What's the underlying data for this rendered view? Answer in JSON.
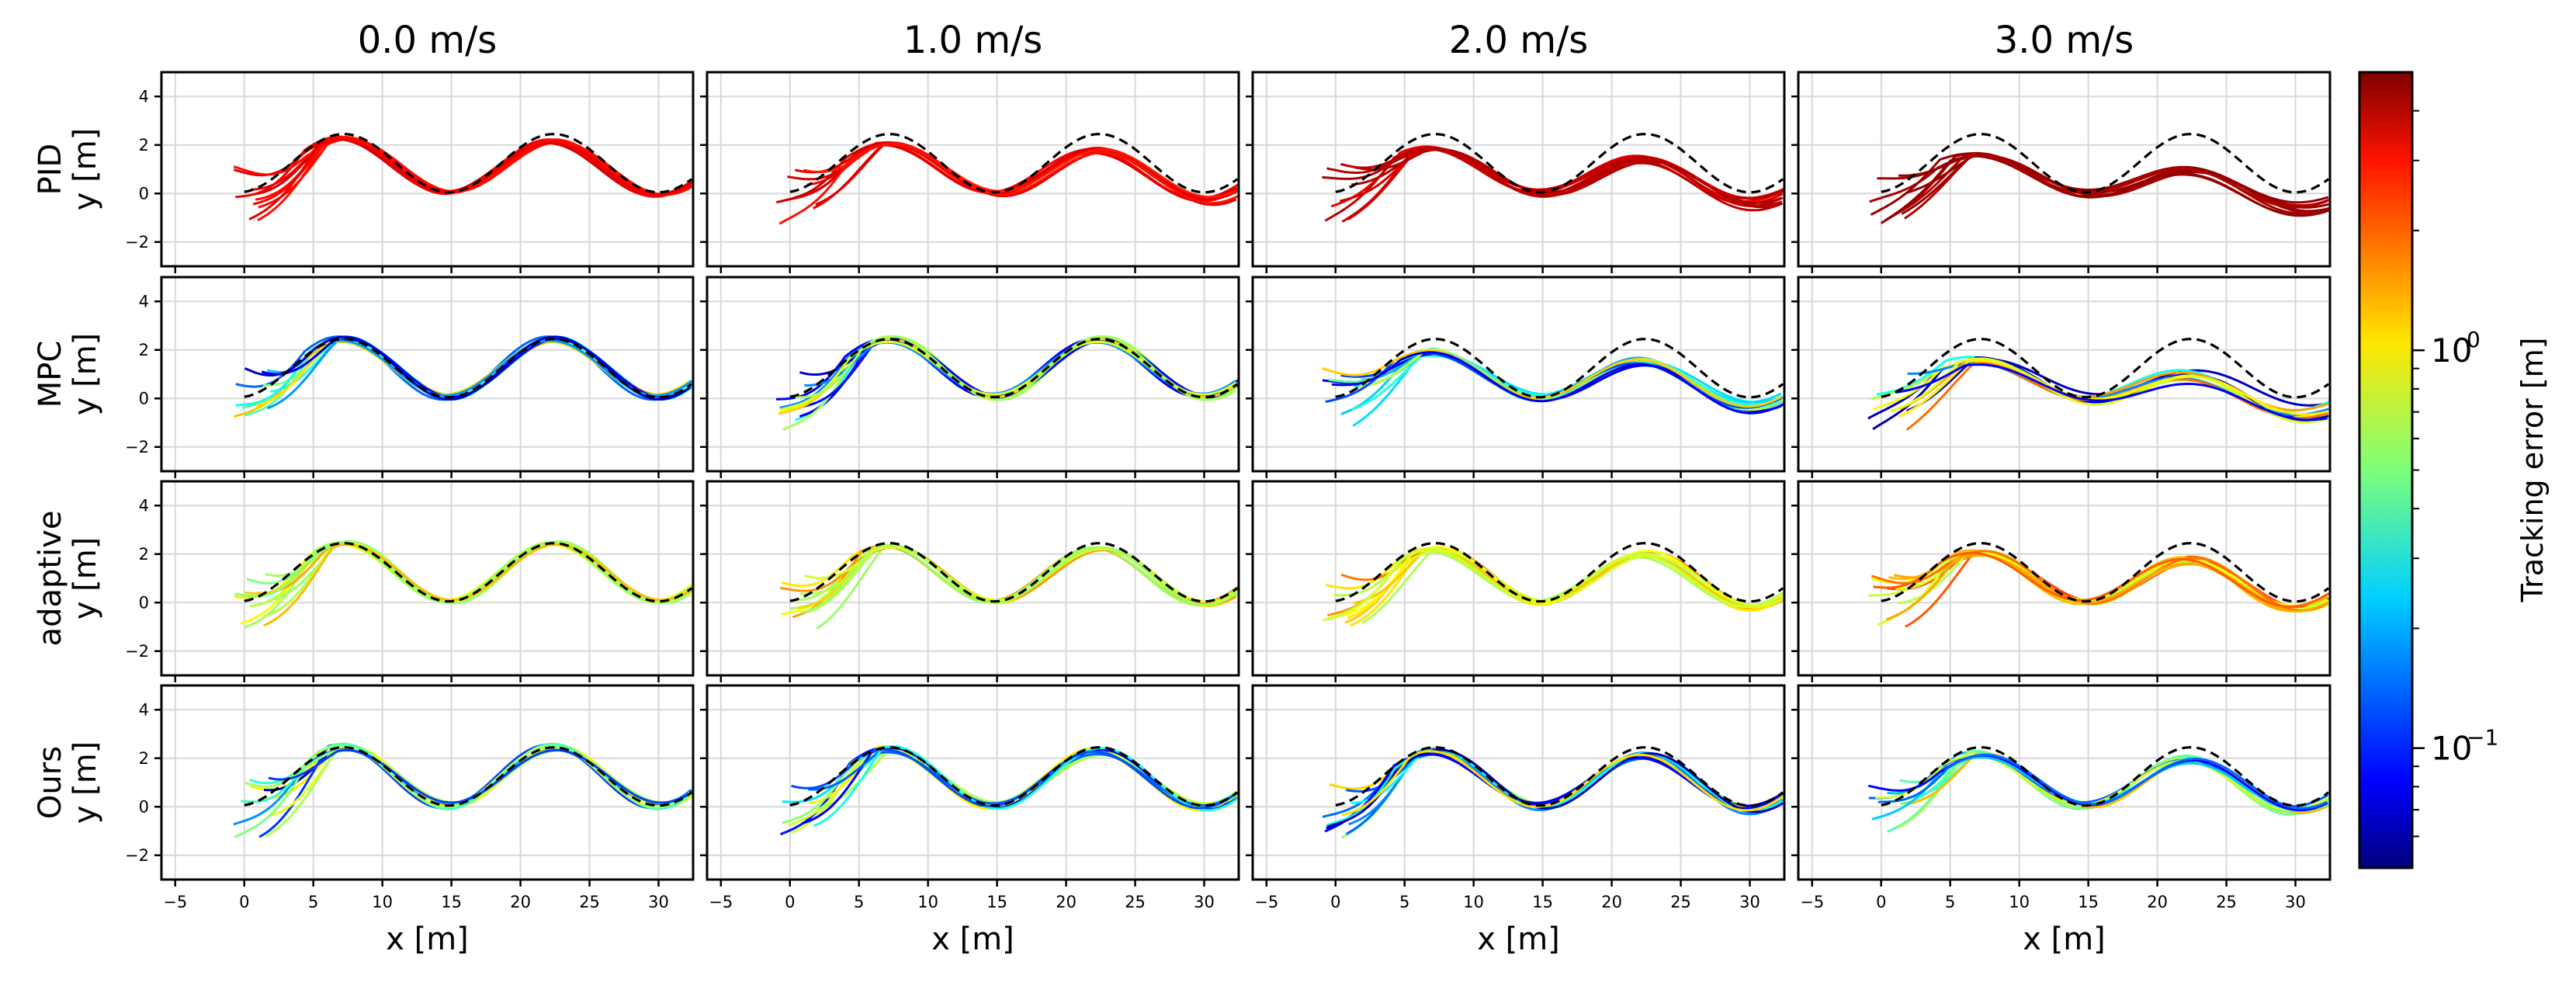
{
  "chart_data": {
    "type": "line-grid",
    "columns": [
      "0.0 m/s",
      "1.0 m/s",
      "2.0 m/s",
      "3.0 m/s"
    ],
    "rows": [
      {
        "method": "PID",
        "ylabel": "y [m]"
      },
      {
        "method": "MPC",
        "ylabel": "y [m]"
      },
      {
        "method": "adaptive",
        "ylabel": "y [m]"
      },
      {
        "method": "Ours",
        "ylabel": "y [m]"
      }
    ],
    "xlabel": "x [m]",
    "xlim": [
      -6,
      32.5
    ],
    "ylim": [
      -3,
      5
    ],
    "xticks": [
      -5,
      0,
      5,
      10,
      15,
      20,
      25,
      30
    ],
    "xtick_labels": [
      "−5",
      "0",
      "5",
      "10",
      "15",
      "20",
      "25",
      "30"
    ],
    "yticks": [
      -2,
      0,
      2,
      4
    ],
    "ytick_labels": [
      "−2",
      "0",
      "2",
      "4"
    ],
    "reference": {
      "style": "dashed",
      "color": "#000000",
      "offset": 1.25,
      "amplitude": 1.2,
      "period": 15.2,
      "peak_x": 7.2
    },
    "colorbar": {
      "label": "Tracking error [m]",
      "scale": "log",
      "colormap": "jet",
      "range": [
        0.05,
        5
      ],
      "ticks": [
        {
          "base": "10",
          "exp": "0",
          "value": 1.0
        },
        {
          "base": "10",
          "exp": "−1",
          "value": 0.1
        }
      ]
    },
    "panels": [
      [
        {
          "traj_error": 3.0,
          "spread": 0.25,
          "num": 10,
          "error_range": [
            2.5,
            3.5
          ]
        },
        {
          "traj_error": 3.0,
          "spread": 0.25,
          "num": 10,
          "error_range": [
            2.5,
            3.5
          ]
        },
        {
          "traj_error": 3.5,
          "spread": 0.3,
          "num": 10,
          "error_range": [
            3.0,
            4.2
          ]
        },
        {
          "traj_error": 4.5,
          "spread": 0.3,
          "num": 10,
          "error_range": [
            4.0,
            5.0
          ]
        }
      ],
      [
        {
          "traj_error": 0.08,
          "spread": 0.6,
          "num": 12,
          "error_range": [
            0.06,
            1.3
          ]
        },
        {
          "traj_error": 0.08,
          "spread": 0.6,
          "num": 12,
          "error_range": [
            0.06,
            1.3
          ]
        },
        {
          "traj_error": 0.5,
          "spread": 0.6,
          "num": 12,
          "error_range": [
            0.06,
            1.3
          ]
        },
        {
          "traj_error": 1.6,
          "spread": 0.6,
          "num": 12,
          "error_range": [
            0.06,
            1.8
          ]
        }
      ],
      [
        {
          "traj_error": 1.0,
          "spread": 0.3,
          "num": 12,
          "error_range": [
            0.5,
            1.5
          ]
        },
        {
          "traj_error": 1.0,
          "spread": 0.3,
          "num": 12,
          "error_range": [
            0.5,
            1.5
          ]
        },
        {
          "traj_error": 1.4,
          "spread": 0.4,
          "num": 12,
          "error_range": [
            0.6,
            2.0
          ]
        },
        {
          "traj_error": 2.0,
          "spread": 0.4,
          "num": 12,
          "error_range": [
            0.6,
            2.2
          ]
        }
      ],
      [
        {
          "traj_error": 0.07,
          "spread": 0.6,
          "num": 12,
          "error_range": [
            0.06,
            1.3
          ]
        },
        {
          "traj_error": 0.07,
          "spread": 0.6,
          "num": 12,
          "error_range": [
            0.06,
            1.3
          ]
        },
        {
          "traj_error": 0.3,
          "spread": 0.6,
          "num": 12,
          "error_range": [
            0.06,
            1.3
          ]
        },
        {
          "traj_error": 0.8,
          "spread": 0.6,
          "num": 12,
          "error_range": [
            0.06,
            1.3
          ]
        }
      ]
    ]
  }
}
